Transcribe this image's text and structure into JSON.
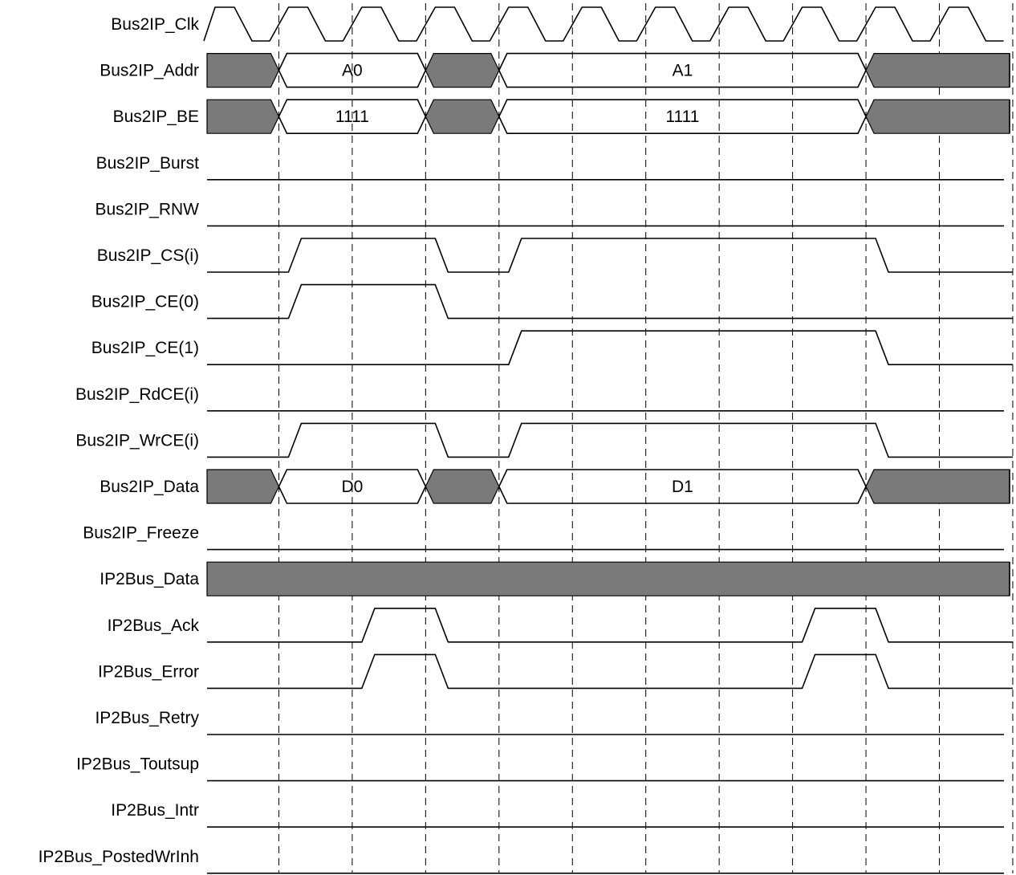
{
  "diagram": {
    "type": "timing-diagram",
    "clock_cycles": 11,
    "colors": {
      "undefined_fill": "#7a7a7a",
      "line": "#000000",
      "background": "#ffffff"
    },
    "signals": [
      {
        "id": "clk",
        "label": "Bus2IP_Clk",
        "kind": "clock"
      },
      {
        "id": "addr",
        "label": "Bus2IP_Addr",
        "kind": "bus",
        "segments": [
          {
            "from": 0,
            "to": 1,
            "state": "X"
          },
          {
            "from": 1,
            "to": 3,
            "state": "V",
            "value": "A0"
          },
          {
            "from": 3,
            "to": 4,
            "state": "X"
          },
          {
            "from": 4,
            "to": 9,
            "state": "V",
            "value": "A1"
          },
          {
            "from": 9,
            "to": 11,
            "state": "X"
          }
        ]
      },
      {
        "id": "be",
        "label": "Bus2IP_BE",
        "kind": "bus",
        "segments": [
          {
            "from": 0,
            "to": 1,
            "state": "X"
          },
          {
            "from": 1,
            "to": 3,
            "state": "V",
            "value": "1111"
          },
          {
            "from": 3,
            "to": 4,
            "state": "X"
          },
          {
            "from": 4,
            "to": 9,
            "state": "V",
            "value": "1111"
          },
          {
            "from": 9,
            "to": 11,
            "state": "X"
          }
        ]
      },
      {
        "id": "burst",
        "label": "Bus2IP_Burst",
        "kind": "low"
      },
      {
        "id": "rnw",
        "label": "Bus2IP_RNW",
        "kind": "low"
      },
      {
        "id": "cs",
        "label": "Bus2IP_CS(i)",
        "kind": "pulse",
        "highs": [
          [
            1,
            3
          ],
          [
            4,
            9
          ]
        ]
      },
      {
        "id": "ce0",
        "label": "Bus2IP_CE(0)",
        "kind": "pulse",
        "highs": [
          [
            1,
            3
          ]
        ]
      },
      {
        "id": "ce1",
        "label": "Bus2IP_CE(1)",
        "kind": "pulse",
        "highs": [
          [
            4,
            9
          ]
        ]
      },
      {
        "id": "rdce",
        "label": "Bus2IP_RdCE(i)",
        "kind": "low"
      },
      {
        "id": "wrce",
        "label": "Bus2IP_WrCE(i)",
        "kind": "pulse",
        "highs": [
          [
            1,
            3
          ],
          [
            4,
            9
          ]
        ]
      },
      {
        "id": "data",
        "label": "Bus2IP_Data",
        "kind": "bus",
        "segments": [
          {
            "from": 0,
            "to": 1,
            "state": "X"
          },
          {
            "from": 1,
            "to": 3,
            "state": "V",
            "value": "D0"
          },
          {
            "from": 3,
            "to": 4,
            "state": "X"
          },
          {
            "from": 4,
            "to": 9,
            "state": "V",
            "value": "D1"
          },
          {
            "from": 9,
            "to": 11,
            "state": "X"
          }
        ]
      },
      {
        "id": "freeze",
        "label": "Bus2IP_Freeze",
        "kind": "low"
      },
      {
        "id": "ipdata",
        "label": "IP2Bus_Data",
        "kind": "bus",
        "segments": [
          {
            "from": 0,
            "to": 11,
            "state": "X"
          }
        ]
      },
      {
        "id": "ack",
        "label": "IP2Bus_Ack",
        "kind": "pulse",
        "highs": [
          [
            2,
            3
          ],
          [
            8,
            9
          ]
        ]
      },
      {
        "id": "error",
        "label": "IP2Bus_Error",
        "kind": "pulse",
        "highs": [
          [
            2,
            3
          ],
          [
            8,
            9
          ]
        ]
      },
      {
        "id": "retry",
        "label": "IP2Bus_Retry",
        "kind": "low"
      },
      {
        "id": "toutsup",
        "label": "IP2Bus_Toutsup",
        "kind": "low"
      },
      {
        "id": "intr",
        "label": "IP2Bus_Intr",
        "kind": "low"
      },
      {
        "id": "postedwr",
        "label": "IP2Bus_PostedWrInh",
        "kind": "low"
      }
    ]
  }
}
